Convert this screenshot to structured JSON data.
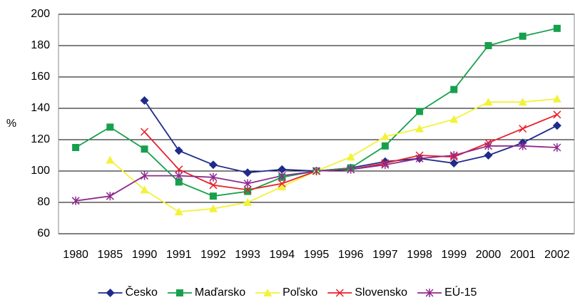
{
  "chart_data": {
    "type": "line",
    "y_label": "%",
    "categories": [
      "1980",
      "1985",
      "1990",
      "1991",
      "1992",
      "1993",
      "1994",
      "1995",
      "1996",
      "1997",
      "1998",
      "1999",
      "2000",
      "2001",
      "2002"
    ],
    "series": [
      {
        "name": "Česko",
        "color": "#1f2a8c",
        "marker": "diamond",
        "values": [
          null,
          null,
          145,
          113,
          104,
          99,
          101,
          100,
          102,
          106,
          108,
          105,
          110,
          118,
          129
        ]
      },
      {
        "name": "Maďarsko",
        "color": "#17a04c",
        "marker": "square",
        "values": [
          115,
          128,
          114,
          93,
          84,
          87,
          96,
          100,
          102,
          116,
          138,
          152,
          180,
          186,
          191
        ]
      },
      {
        "name": "Poľsko",
        "color": "#f2f23a",
        "marker": "triangle",
        "values": [
          null,
          107,
          88,
          74,
          76,
          80,
          90,
          100,
          109,
          122,
          127,
          133,
          144,
          144,
          146
        ]
      },
      {
        "name": "Slovensko",
        "color": "#e8202a",
        "marker": "x",
        "values": [
          null,
          null,
          125,
          101,
          91,
          88,
          92,
          100,
          101,
          105,
          110,
          109,
          118,
          127,
          136
        ]
      },
      {
        "name": "EÚ-15",
        "color": "#8e2b8e",
        "marker": "star",
        "values": [
          81,
          84,
          97,
          97,
          96,
          92,
          97,
          100,
          101,
          104,
          108,
          110,
          116,
          116,
          115
        ]
      }
    ],
    "ylim": [
      60,
      200
    ],
    "yticks": [
      60,
      80,
      100,
      120,
      140,
      160,
      180,
      200
    ],
    "grid": true,
    "legend": "bottom"
  }
}
